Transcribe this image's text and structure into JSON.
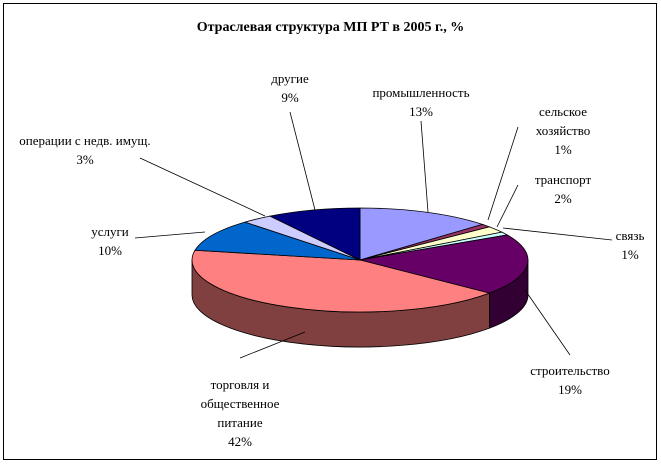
{
  "chart_data": {
    "type": "pie3d",
    "title": "Отраслевая структура МП РТ в 2005 г., %",
    "categories": [
      "промышленность",
      "сельское хозяйство",
      "транспорт",
      "связь",
      "строительство",
      "торговля и общественное питание",
      "услуги",
      "операции с недв. имущ.",
      "другие"
    ],
    "values": [
      13,
      1,
      2,
      1,
      19,
      42,
      10,
      3,
      9
    ],
    "value_labels": [
      "13%",
      "1%",
      "2%",
      "1%",
      "19%",
      "42%",
      "10%",
      "3%",
      "9%"
    ],
    "colors": [
      "#9999ff",
      "#993366",
      "#ffffcc",
      "#ccffff",
      "#660066",
      "#ff8080",
      "#0066cc",
      "#ccccff",
      "#000080"
    ]
  }
}
